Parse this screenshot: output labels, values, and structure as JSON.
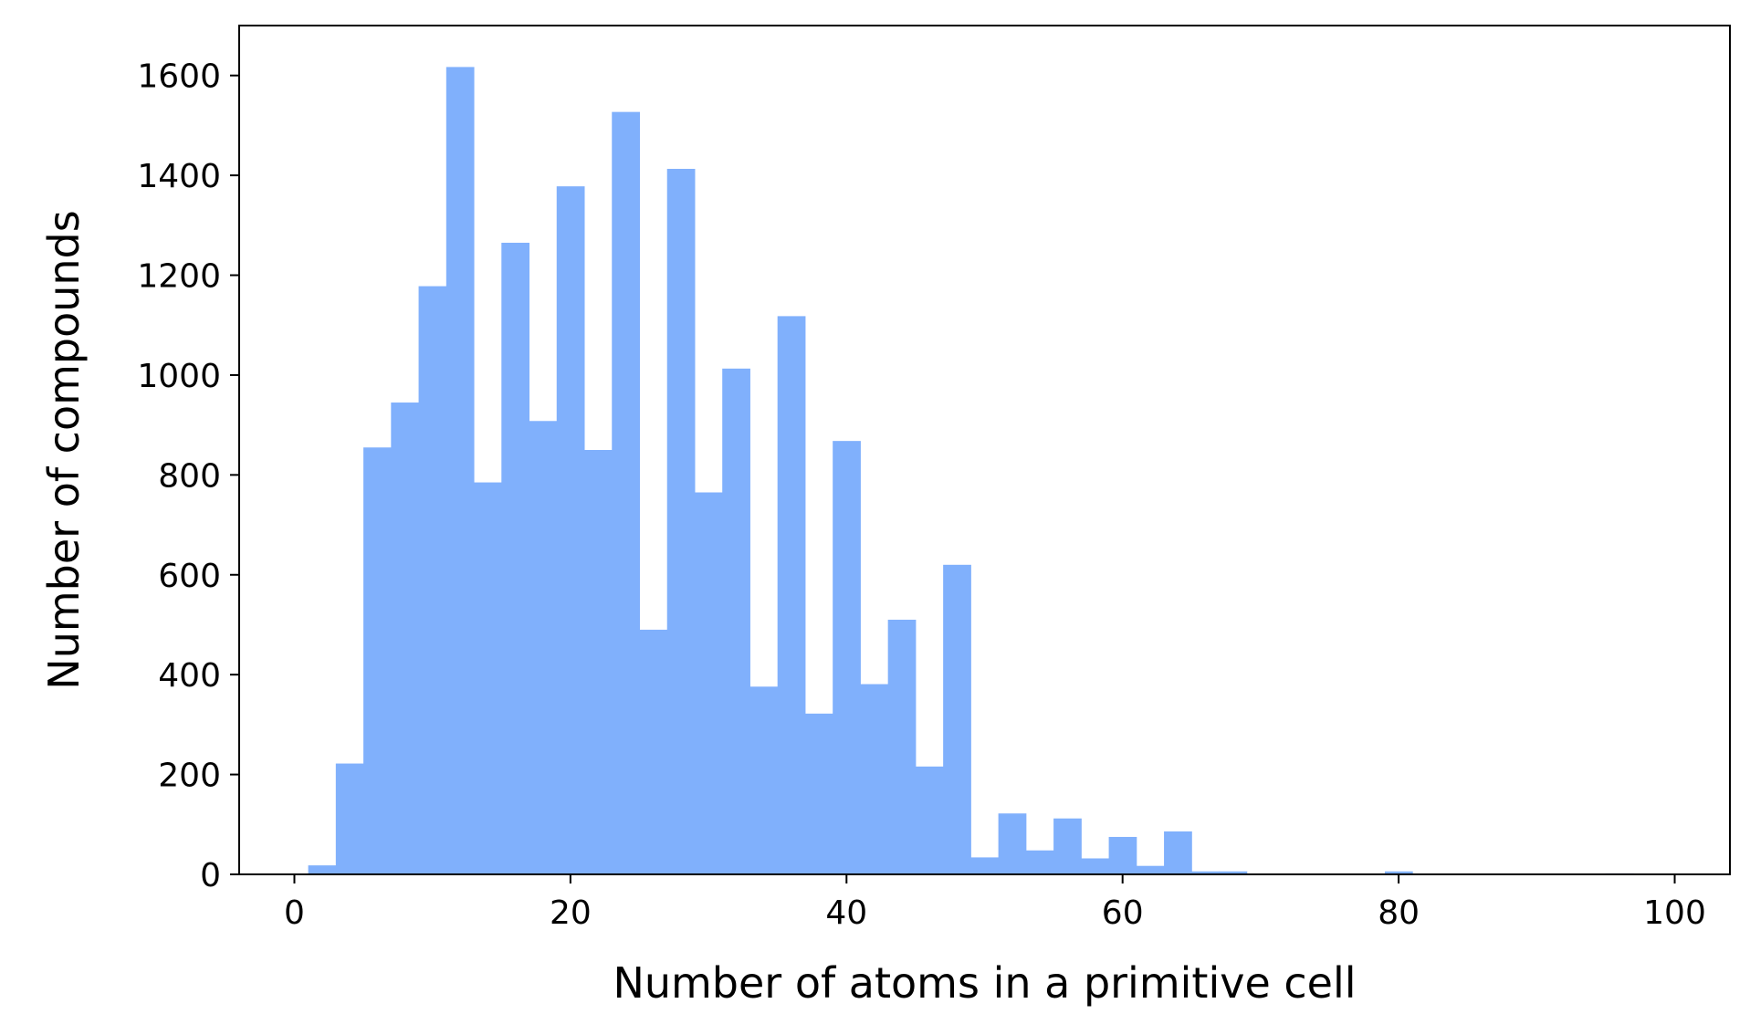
{
  "colors": {
    "bar": "#80b0fc",
    "axis": "#000000",
    "background": "#ffffff"
  },
  "chart_data": {
    "type": "bar",
    "title": "",
    "xlabel": "Number of atoms in a primitive cell",
    "ylabel": "Number of compounds",
    "xlim": [
      -4,
      104
    ],
    "ylim": [
      0,
      1700
    ],
    "grid": false,
    "bin_width": 2,
    "x_ticks": [
      0,
      20,
      40,
      60,
      80,
      100
    ],
    "x_tick_labels": [
      "0",
      "20",
      "40",
      "60",
      "80",
      "100"
    ],
    "y_ticks": [
      0,
      200,
      400,
      600,
      800,
      1000,
      1200,
      1400,
      1600
    ],
    "y_tick_labels": [
      "0",
      "200",
      "400",
      "600",
      "800",
      "1000",
      "1200",
      "1400",
      "1600"
    ],
    "bins": [
      {
        "x0": 1,
        "x1": 3,
        "value": 18
      },
      {
        "x0": 3,
        "x1": 5,
        "value": 222
      },
      {
        "x0": 5,
        "x1": 7,
        "value": 855
      },
      {
        "x0": 7,
        "x1": 9,
        "value": 945
      },
      {
        "x0": 9,
        "x1": 11,
        "value": 1178
      },
      {
        "x0": 11,
        "x1": 13,
        "value": 1617
      },
      {
        "x0": 13,
        "x1": 15,
        "value": 785
      },
      {
        "x0": 15,
        "x1": 17,
        "value": 1265
      },
      {
        "x0": 17,
        "x1": 19,
        "value": 908
      },
      {
        "x0": 19,
        "x1": 21,
        "value": 1378
      },
      {
        "x0": 21,
        "x1": 23,
        "value": 850
      },
      {
        "x0": 23,
        "x1": 25,
        "value": 1527
      },
      {
        "x0": 25,
        "x1": 27,
        "value": 490
      },
      {
        "x0": 27,
        "x1": 29,
        "value": 1413
      },
      {
        "x0": 29,
        "x1": 31,
        "value": 765
      },
      {
        "x0": 31,
        "x1": 33,
        "value": 1013
      },
      {
        "x0": 33,
        "x1": 35,
        "value": 376
      },
      {
        "x0": 35,
        "x1": 37,
        "value": 1118
      },
      {
        "x0": 37,
        "x1": 39,
        "value": 322
      },
      {
        "x0": 39,
        "x1": 41,
        "value": 868
      },
      {
        "x0": 41,
        "x1": 43,
        "value": 381
      },
      {
        "x0": 43,
        "x1": 45,
        "value": 510
      },
      {
        "x0": 45,
        "x1": 47,
        "value": 216
      },
      {
        "x0": 47,
        "x1": 49,
        "value": 620
      },
      {
        "x0": 49,
        "x1": 51,
        "value": 34
      },
      {
        "x0": 51,
        "x1": 53,
        "value": 122
      },
      {
        "x0": 53,
        "x1": 55,
        "value": 48
      },
      {
        "x0": 55,
        "x1": 57,
        "value": 112
      },
      {
        "x0": 57,
        "x1": 59,
        "value": 32
      },
      {
        "x0": 59,
        "x1": 61,
        "value": 75
      },
      {
        "x0": 61,
        "x1": 63,
        "value": 17
      },
      {
        "x0": 63,
        "x1": 65,
        "value": 86
      },
      {
        "x0": 65,
        "x1": 67,
        "value": 6
      },
      {
        "x0": 67,
        "x1": 69,
        "value": 6
      },
      {
        "x0": 79,
        "x1": 81,
        "value": 6
      },
      {
        "x0": 95,
        "x1": 97,
        "value": 2
      }
    ]
  }
}
